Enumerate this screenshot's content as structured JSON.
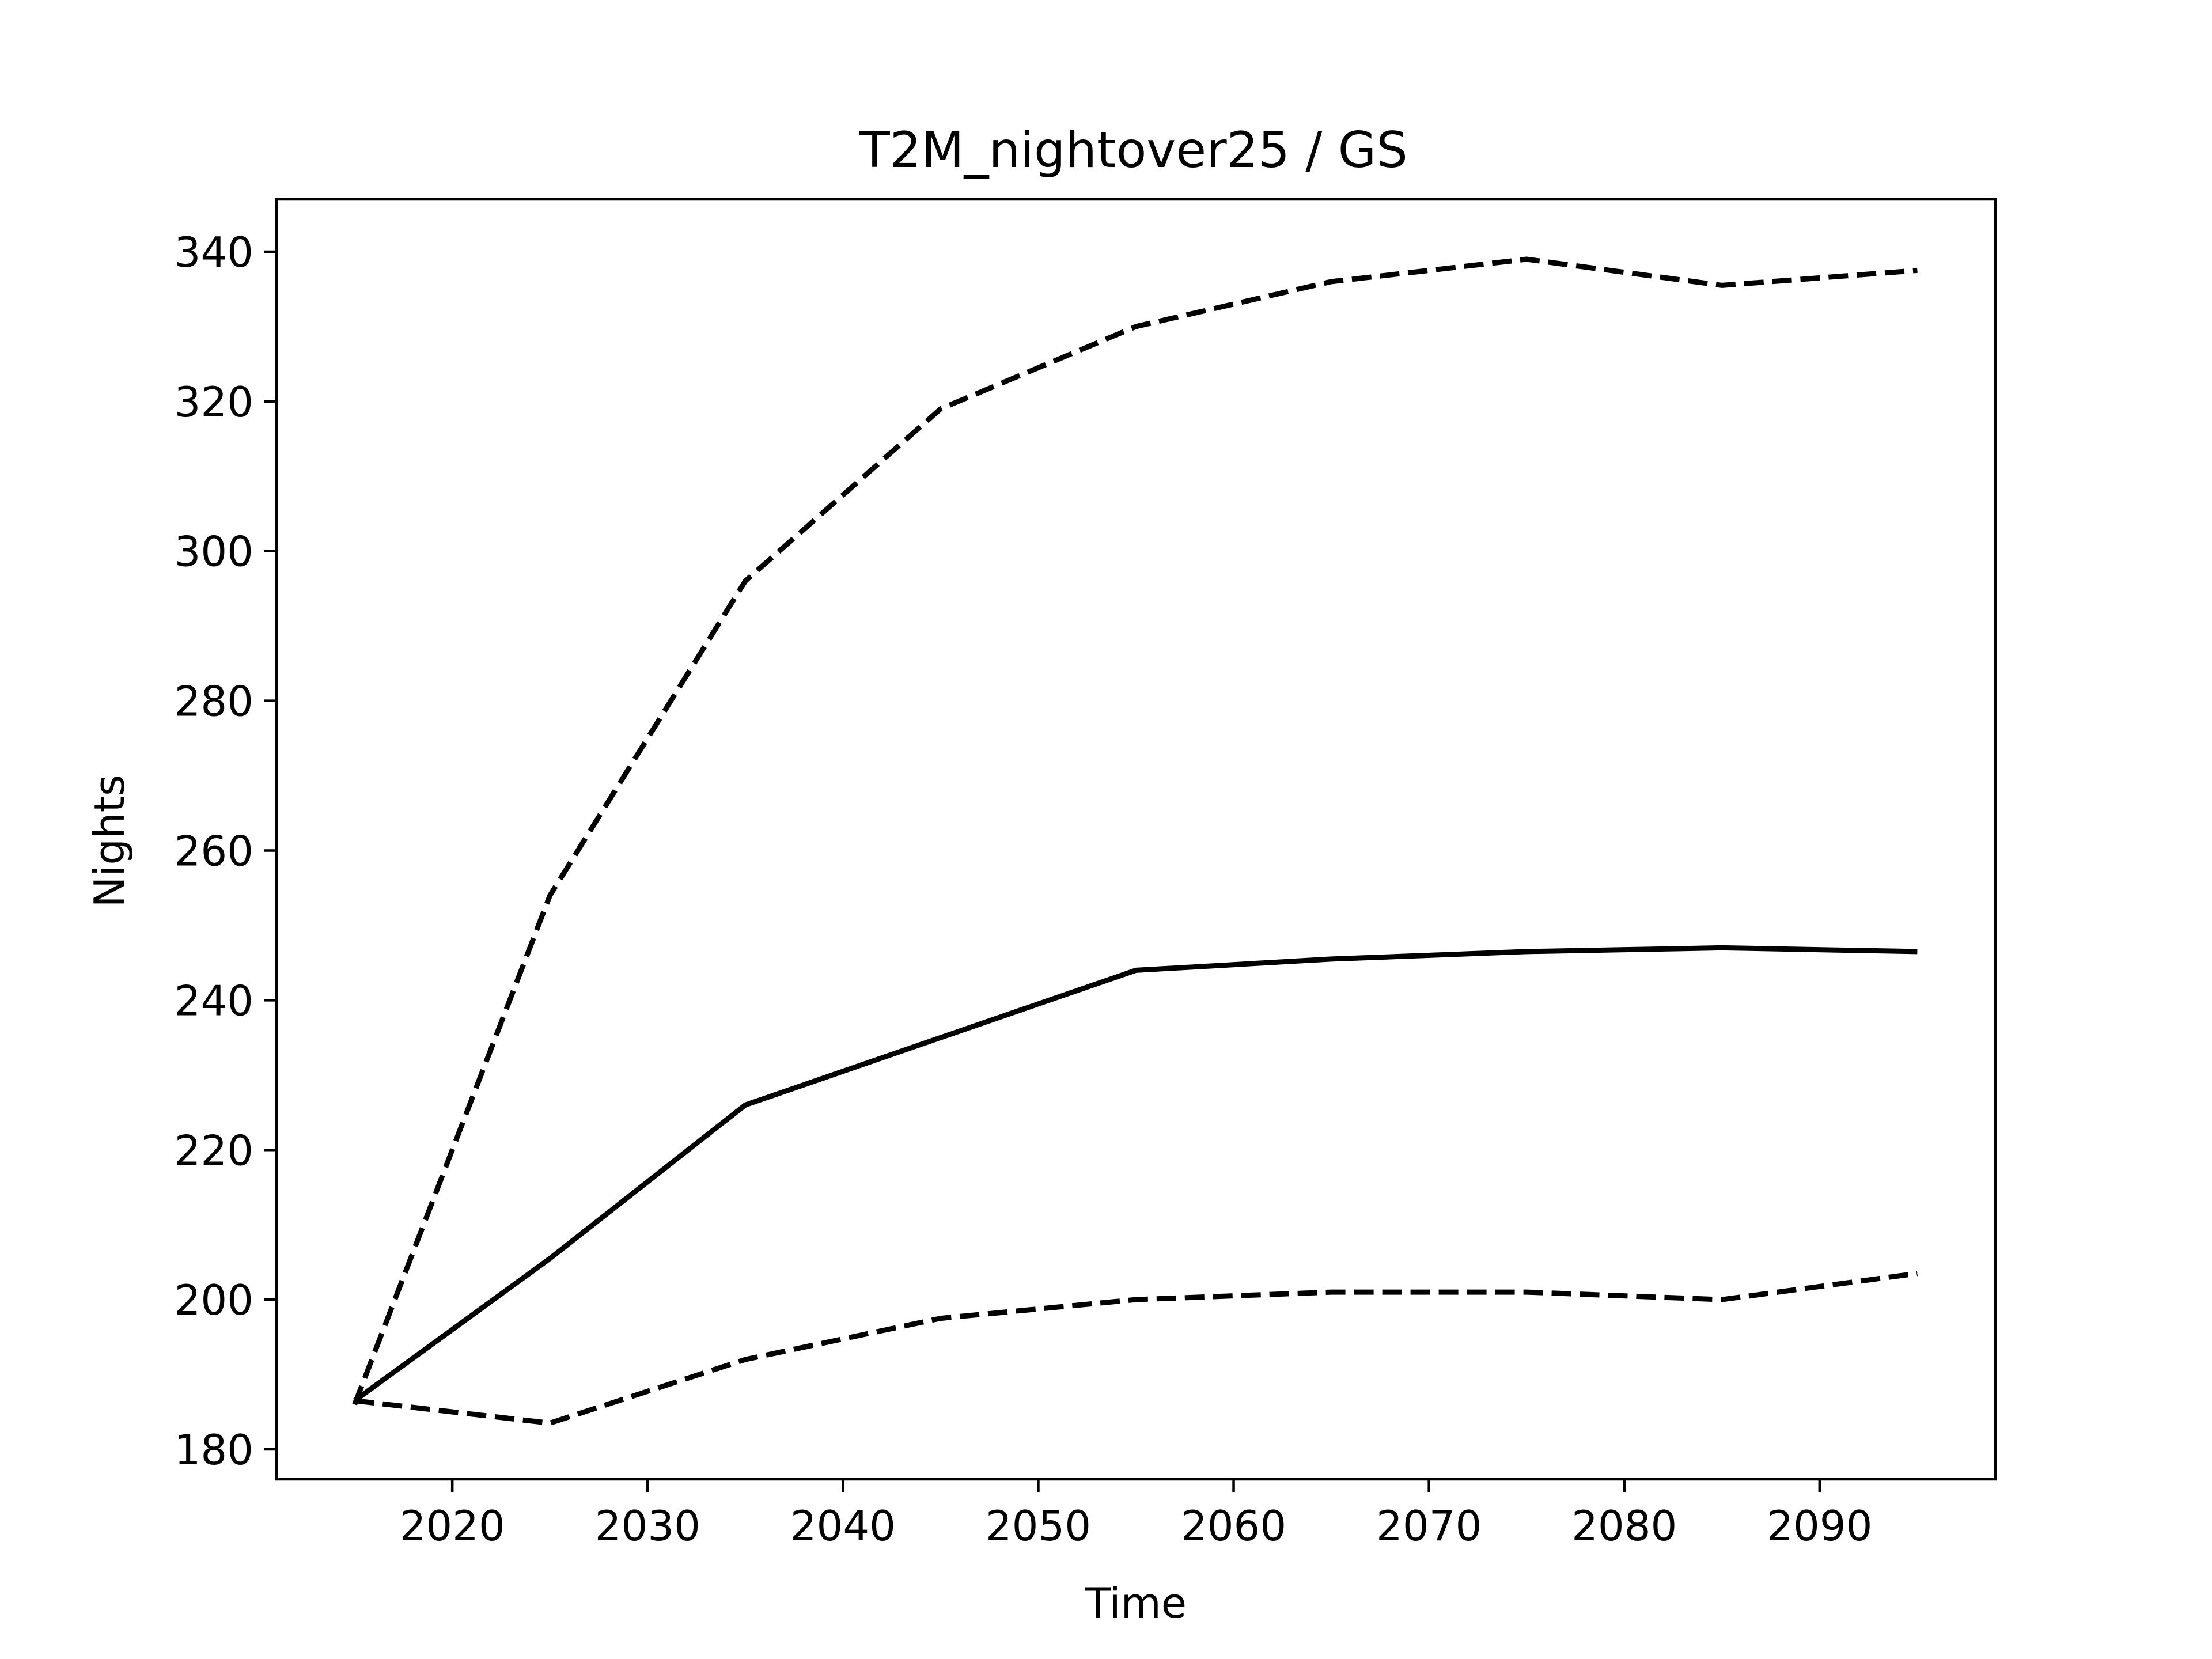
{
  "chart_data": {
    "type": "line",
    "title": "T2M_nightover25 / GS",
    "xlabel": "Time",
    "ylabel": "Nights",
    "xlim": [
      2011,
      2099
    ],
    "ylim": [
      176,
      347
    ],
    "xticks": [
      2020,
      2030,
      2040,
      2050,
      2060,
      2070,
      2080,
      2090
    ],
    "yticks": [
      180,
      200,
      220,
      240,
      260,
      280,
      300,
      320,
      340
    ],
    "grid": false,
    "x": [
      2015,
      2025,
      2035,
      2045,
      2055,
      2065,
      2075,
      2085,
      2095
    ],
    "series": [
      {
        "style": "dashed",
        "color": "#000000",
        "values": [
          186,
          254,
          296,
          319,
          330,
          336,
          339,
          335.5,
          337.5
        ]
      },
      {
        "style": "solid",
        "color": "#000000",
        "values": [
          186.5,
          205.5,
          226,
          235,
          244,
          245.5,
          246.5,
          247,
          246.5
        ]
      },
      {
        "style": "dashed",
        "color": "#000000",
        "values": [
          186.5,
          183.5,
          192,
          197.5,
          200,
          201,
          201,
          200,
          203.5
        ]
      }
    ]
  }
}
